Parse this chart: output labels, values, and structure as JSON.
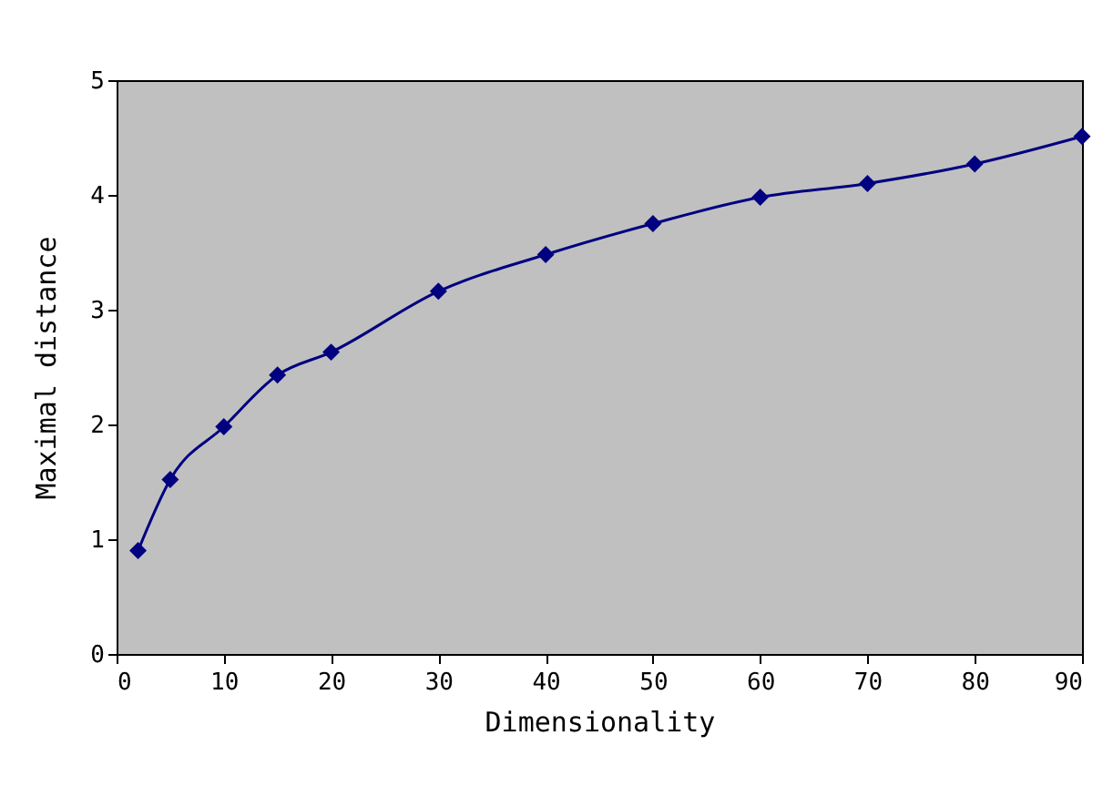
{
  "chart_data": {
    "type": "line",
    "xlabel": "Dimensionality",
    "ylabel": "Maximal distance",
    "x": [
      2,
      5,
      10,
      15,
      20,
      30,
      40,
      50,
      60,
      70,
      80,
      90
    ],
    "series": [
      {
        "color": "#000080",
        "values": [
          0.9,
          1.52,
          1.98,
          2.43,
          2.63,
          3.16,
          3.48,
          3.75,
          3.98,
          4.1,
          4.27,
          4.51
        ]
      }
    ],
    "xlim": [
      0,
      90
    ],
    "xticks": [
      0,
      10,
      20,
      30,
      40,
      50,
      60,
      70,
      80,
      90
    ],
    "ylim": [
      0,
      5
    ],
    "yticks": [
      0,
      1,
      2,
      3,
      4,
      5
    ],
    "grid": false,
    "marker": "diamond",
    "line_style": "solid"
  }
}
